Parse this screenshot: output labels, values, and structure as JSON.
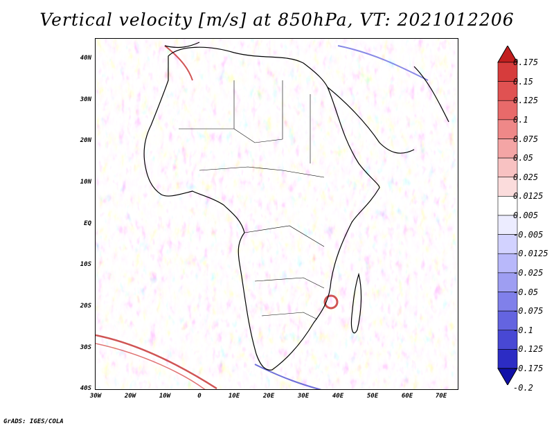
{
  "title": "Vertical velocity [m/s] at 850hPa, VT: 2021012206",
  "credit": "GrADS: IGES/COLA",
  "map": {
    "y_axis_labels": [
      "40N",
      "30N",
      "20N",
      "10N",
      "EQ",
      "10S",
      "20S",
      "30S",
      "40S"
    ],
    "x_axis_labels": [
      "30W",
      "20W",
      "10W",
      "0",
      "10E",
      "20E",
      "30E",
      "40E",
      "50E",
      "60E",
      "70E"
    ],
    "extent": {
      "lon": [
        -30,
        75
      ],
      "lat": [
        -40,
        45
      ]
    }
  },
  "colorbar": {
    "labels": [
      "0.175",
      "0.15",
      "0.125",
      "0.1",
      "0.075",
      "0.05",
      "0.025",
      "0.0125",
      "0.005",
      "-0.005",
      "-0.0125",
      "-0.025",
      "-0.05",
      "-0.075",
      "-0.1",
      "-0.125",
      "-0.175",
      "-0.2"
    ],
    "colors": [
      "#c21e1e",
      "#d63c3c",
      "#e05252",
      "#e86a6a",
      "#ef8888",
      "#f4a5a5",
      "#f8c2c2",
      "#fbdcdc",
      "#ffffff",
      "#ececff",
      "#d2d2ff",
      "#b8b8fa",
      "#9e9ef2",
      "#8080ea",
      "#6464e0",
      "#4848d4",
      "#2c2cc4",
      "#1010a8"
    ]
  }
}
